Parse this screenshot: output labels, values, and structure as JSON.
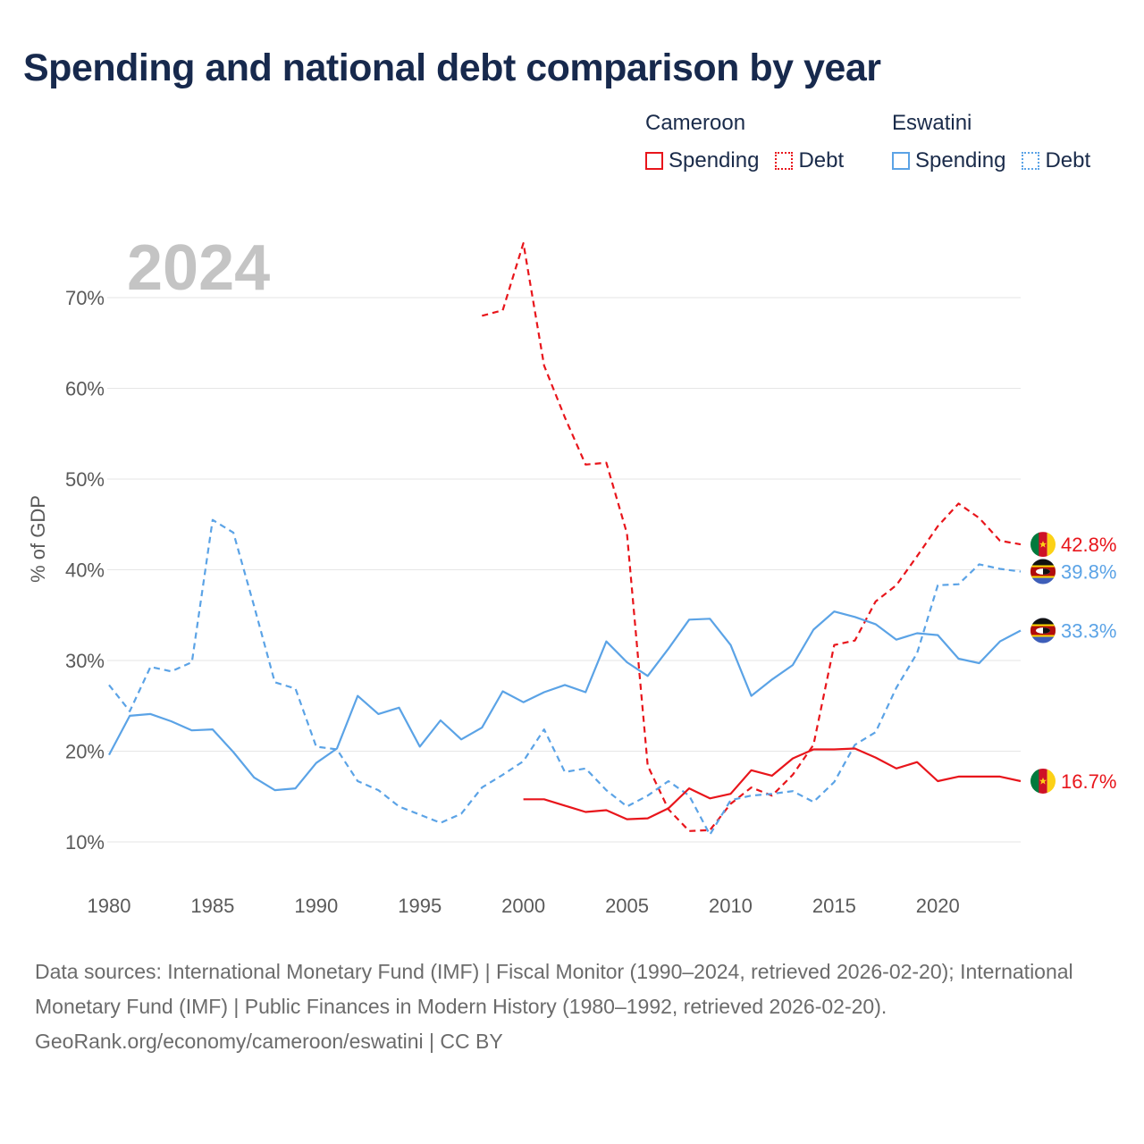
{
  "title": "Spending and national debt comparison by year",
  "legend": {
    "groups": [
      {
        "country": "Cameroon",
        "items": [
          {
            "label": "Spending",
            "style": "solid",
            "color": "#e8151b"
          },
          {
            "label": "Debt",
            "style": "dotted",
            "color": "#e8151b"
          }
        ]
      },
      {
        "country": "Eswatini",
        "items": [
          {
            "label": "Spending",
            "style": "solid",
            "color": "#5ba3e6"
          },
          {
            "label": "Debt",
            "style": "dotted",
            "color": "#5ba3e6"
          }
        ]
      }
    ]
  },
  "footer": {
    "sources": "Data sources: International Monetary Fund (IMF) | Fiscal Monitor (1990–2024, retrieved 2026-02-20); International Monetary Fund (IMF) | Public Finances in Modern History (1980–1992, retrieved 2026-02-20).",
    "credit": "GeoRank.org/economy/cameroon/eswatini | CC BY"
  },
  "chart_data": {
    "type": "line",
    "year_label": "2024",
    "ylabel": "% of GDP",
    "xlabel": "",
    "xlim": [
      1980,
      2024
    ],
    "ylim": [
      10,
      75
    ],
    "x_ticks": [
      1980,
      1985,
      1990,
      1995,
      2000,
      2005,
      2010,
      2015,
      2020
    ],
    "y_ticks": [
      10,
      20,
      30,
      40,
      50,
      60,
      70
    ],
    "y_tick_labels": [
      "10%",
      "20%",
      "30%",
      "40%",
      "50%",
      "60%",
      "70%"
    ],
    "series": [
      {
        "name": "Cameroon Debt",
        "country": "Cameroon",
        "metric": "Debt",
        "color": "#e8151b",
        "dash": true,
        "end_label": "42.8%",
        "flag": "cameroon",
        "points": [
          [
            1998,
            68.0
          ],
          [
            1999,
            68.6
          ],
          [
            2000,
            76.0
          ],
          [
            2001,
            62.5
          ],
          [
            2002,
            56.8
          ],
          [
            2003,
            51.6
          ],
          [
            2004,
            51.8
          ],
          [
            2005,
            44.0
          ],
          [
            2006,
            18.4
          ],
          [
            2007,
            13.6
          ],
          [
            2008,
            11.2
          ],
          [
            2009,
            11.3
          ],
          [
            2010,
            14.2
          ],
          [
            2011,
            16.0
          ],
          [
            2012,
            15.1
          ],
          [
            2013,
            17.4
          ],
          [
            2014,
            20.7
          ],
          [
            2015,
            31.7
          ],
          [
            2016,
            32.2
          ],
          [
            2017,
            36.5
          ],
          [
            2018,
            38.3
          ],
          [
            2019,
            41.5
          ],
          [
            2020,
            44.8
          ],
          [
            2021,
            47.3
          ],
          [
            2022,
            45.7
          ],
          [
            2023,
            43.2
          ],
          [
            2024,
            42.8
          ]
        ]
      },
      {
        "name": "Eswatini Debt",
        "country": "Eswatini",
        "metric": "Debt",
        "color": "#5ba3e6",
        "dash": true,
        "end_label": "39.8%",
        "flag": "eswatini",
        "points": [
          [
            1980,
            27.3
          ],
          [
            1981,
            24.4
          ],
          [
            1982,
            29.3
          ],
          [
            1983,
            28.8
          ],
          [
            1984,
            29.8
          ],
          [
            1985,
            45.5
          ],
          [
            1986,
            44.1
          ],
          [
            1987,
            36.0
          ],
          [
            1988,
            27.6
          ],
          [
            1989,
            26.9
          ],
          [
            1990,
            20.5
          ],
          [
            1991,
            20.2
          ],
          [
            1992,
            16.7
          ],
          [
            1993,
            15.7
          ],
          [
            1994,
            13.9
          ],
          [
            1995,
            13.0
          ],
          [
            1996,
            12.1
          ],
          [
            1997,
            13.1
          ],
          [
            1998,
            16.0
          ],
          [
            1999,
            17.4
          ],
          [
            2000,
            18.9
          ],
          [
            2001,
            22.4
          ],
          [
            2002,
            17.7
          ],
          [
            2003,
            18.1
          ],
          [
            2004,
            15.7
          ],
          [
            2005,
            13.9
          ],
          [
            2006,
            15.1
          ],
          [
            2007,
            16.7
          ],
          [
            2008,
            15.1
          ],
          [
            2009,
            10.8
          ],
          [
            2010,
            14.6
          ],
          [
            2011,
            15.1
          ],
          [
            2012,
            15.3
          ],
          [
            2013,
            15.6
          ],
          [
            2014,
            14.4
          ],
          [
            2015,
            16.6
          ],
          [
            2016,
            20.7
          ],
          [
            2017,
            22.1
          ],
          [
            2018,
            27.0
          ],
          [
            2019,
            30.8
          ],
          [
            2020,
            38.3
          ],
          [
            2021,
            38.4
          ],
          [
            2022,
            40.6
          ],
          [
            2023,
            40.1
          ],
          [
            2024,
            39.8
          ]
        ]
      },
      {
        "name": "Eswatini Spending",
        "country": "Eswatini",
        "metric": "Spending",
        "color": "#5ba3e6",
        "dash": false,
        "end_label": "33.3%",
        "flag": "eswatini",
        "points": [
          [
            1980,
            19.6
          ],
          [
            1981,
            23.9
          ],
          [
            1982,
            24.1
          ],
          [
            1983,
            23.3
          ],
          [
            1984,
            22.3
          ],
          [
            1985,
            22.4
          ],
          [
            1986,
            19.9
          ],
          [
            1987,
            17.1
          ],
          [
            1988,
            15.7
          ],
          [
            1989,
            15.9
          ],
          [
            1990,
            18.7
          ],
          [
            1991,
            20.3
          ],
          [
            1992,
            26.1
          ],
          [
            1993,
            24.1
          ],
          [
            1994,
            24.8
          ],
          [
            1995,
            20.5
          ],
          [
            1996,
            23.4
          ],
          [
            1997,
            21.3
          ],
          [
            1998,
            22.6
          ],
          [
            1999,
            26.6
          ],
          [
            2000,
            25.4
          ],
          [
            2001,
            26.5
          ],
          [
            2002,
            27.3
          ],
          [
            2003,
            26.5
          ],
          [
            2004,
            32.1
          ],
          [
            2005,
            29.8
          ],
          [
            2006,
            28.3
          ],
          [
            2007,
            31.3
          ],
          [
            2008,
            34.5
          ],
          [
            2009,
            34.6
          ],
          [
            2010,
            31.7
          ],
          [
            2011,
            26.1
          ],
          [
            2012,
            27.9
          ],
          [
            2013,
            29.5
          ],
          [
            2014,
            33.4
          ],
          [
            2015,
            35.4
          ],
          [
            2016,
            34.8
          ],
          [
            2017,
            34.0
          ],
          [
            2018,
            32.3
          ],
          [
            2019,
            33.0
          ],
          [
            2020,
            32.8
          ],
          [
            2021,
            30.2
          ],
          [
            2022,
            29.7
          ],
          [
            2023,
            32.1
          ],
          [
            2024,
            33.3
          ]
        ]
      },
      {
        "name": "Cameroon Spending",
        "country": "Cameroon",
        "metric": "Spending",
        "color": "#e8151b",
        "dash": false,
        "end_label": "16.7%",
        "flag": "cameroon",
        "points": [
          [
            2000,
            14.7
          ],
          [
            2001,
            14.7
          ],
          [
            2002,
            14.0
          ],
          [
            2003,
            13.3
          ],
          [
            2004,
            13.5
          ],
          [
            2005,
            12.5
          ],
          [
            2006,
            12.6
          ],
          [
            2007,
            13.7
          ],
          [
            2008,
            15.9
          ],
          [
            2009,
            14.8
          ],
          [
            2010,
            15.3
          ],
          [
            2011,
            17.9
          ],
          [
            2012,
            17.3
          ],
          [
            2013,
            19.2
          ],
          [
            2014,
            20.2
          ],
          [
            2015,
            20.2
          ],
          [
            2016,
            20.3
          ],
          [
            2017,
            19.3
          ],
          [
            2018,
            18.1
          ],
          [
            2019,
            18.8
          ],
          [
            2020,
            16.7
          ],
          [
            2021,
            17.2
          ],
          [
            2022,
            17.2
          ],
          [
            2023,
            17.2
          ],
          [
            2024,
            16.7
          ]
        ]
      }
    ]
  }
}
